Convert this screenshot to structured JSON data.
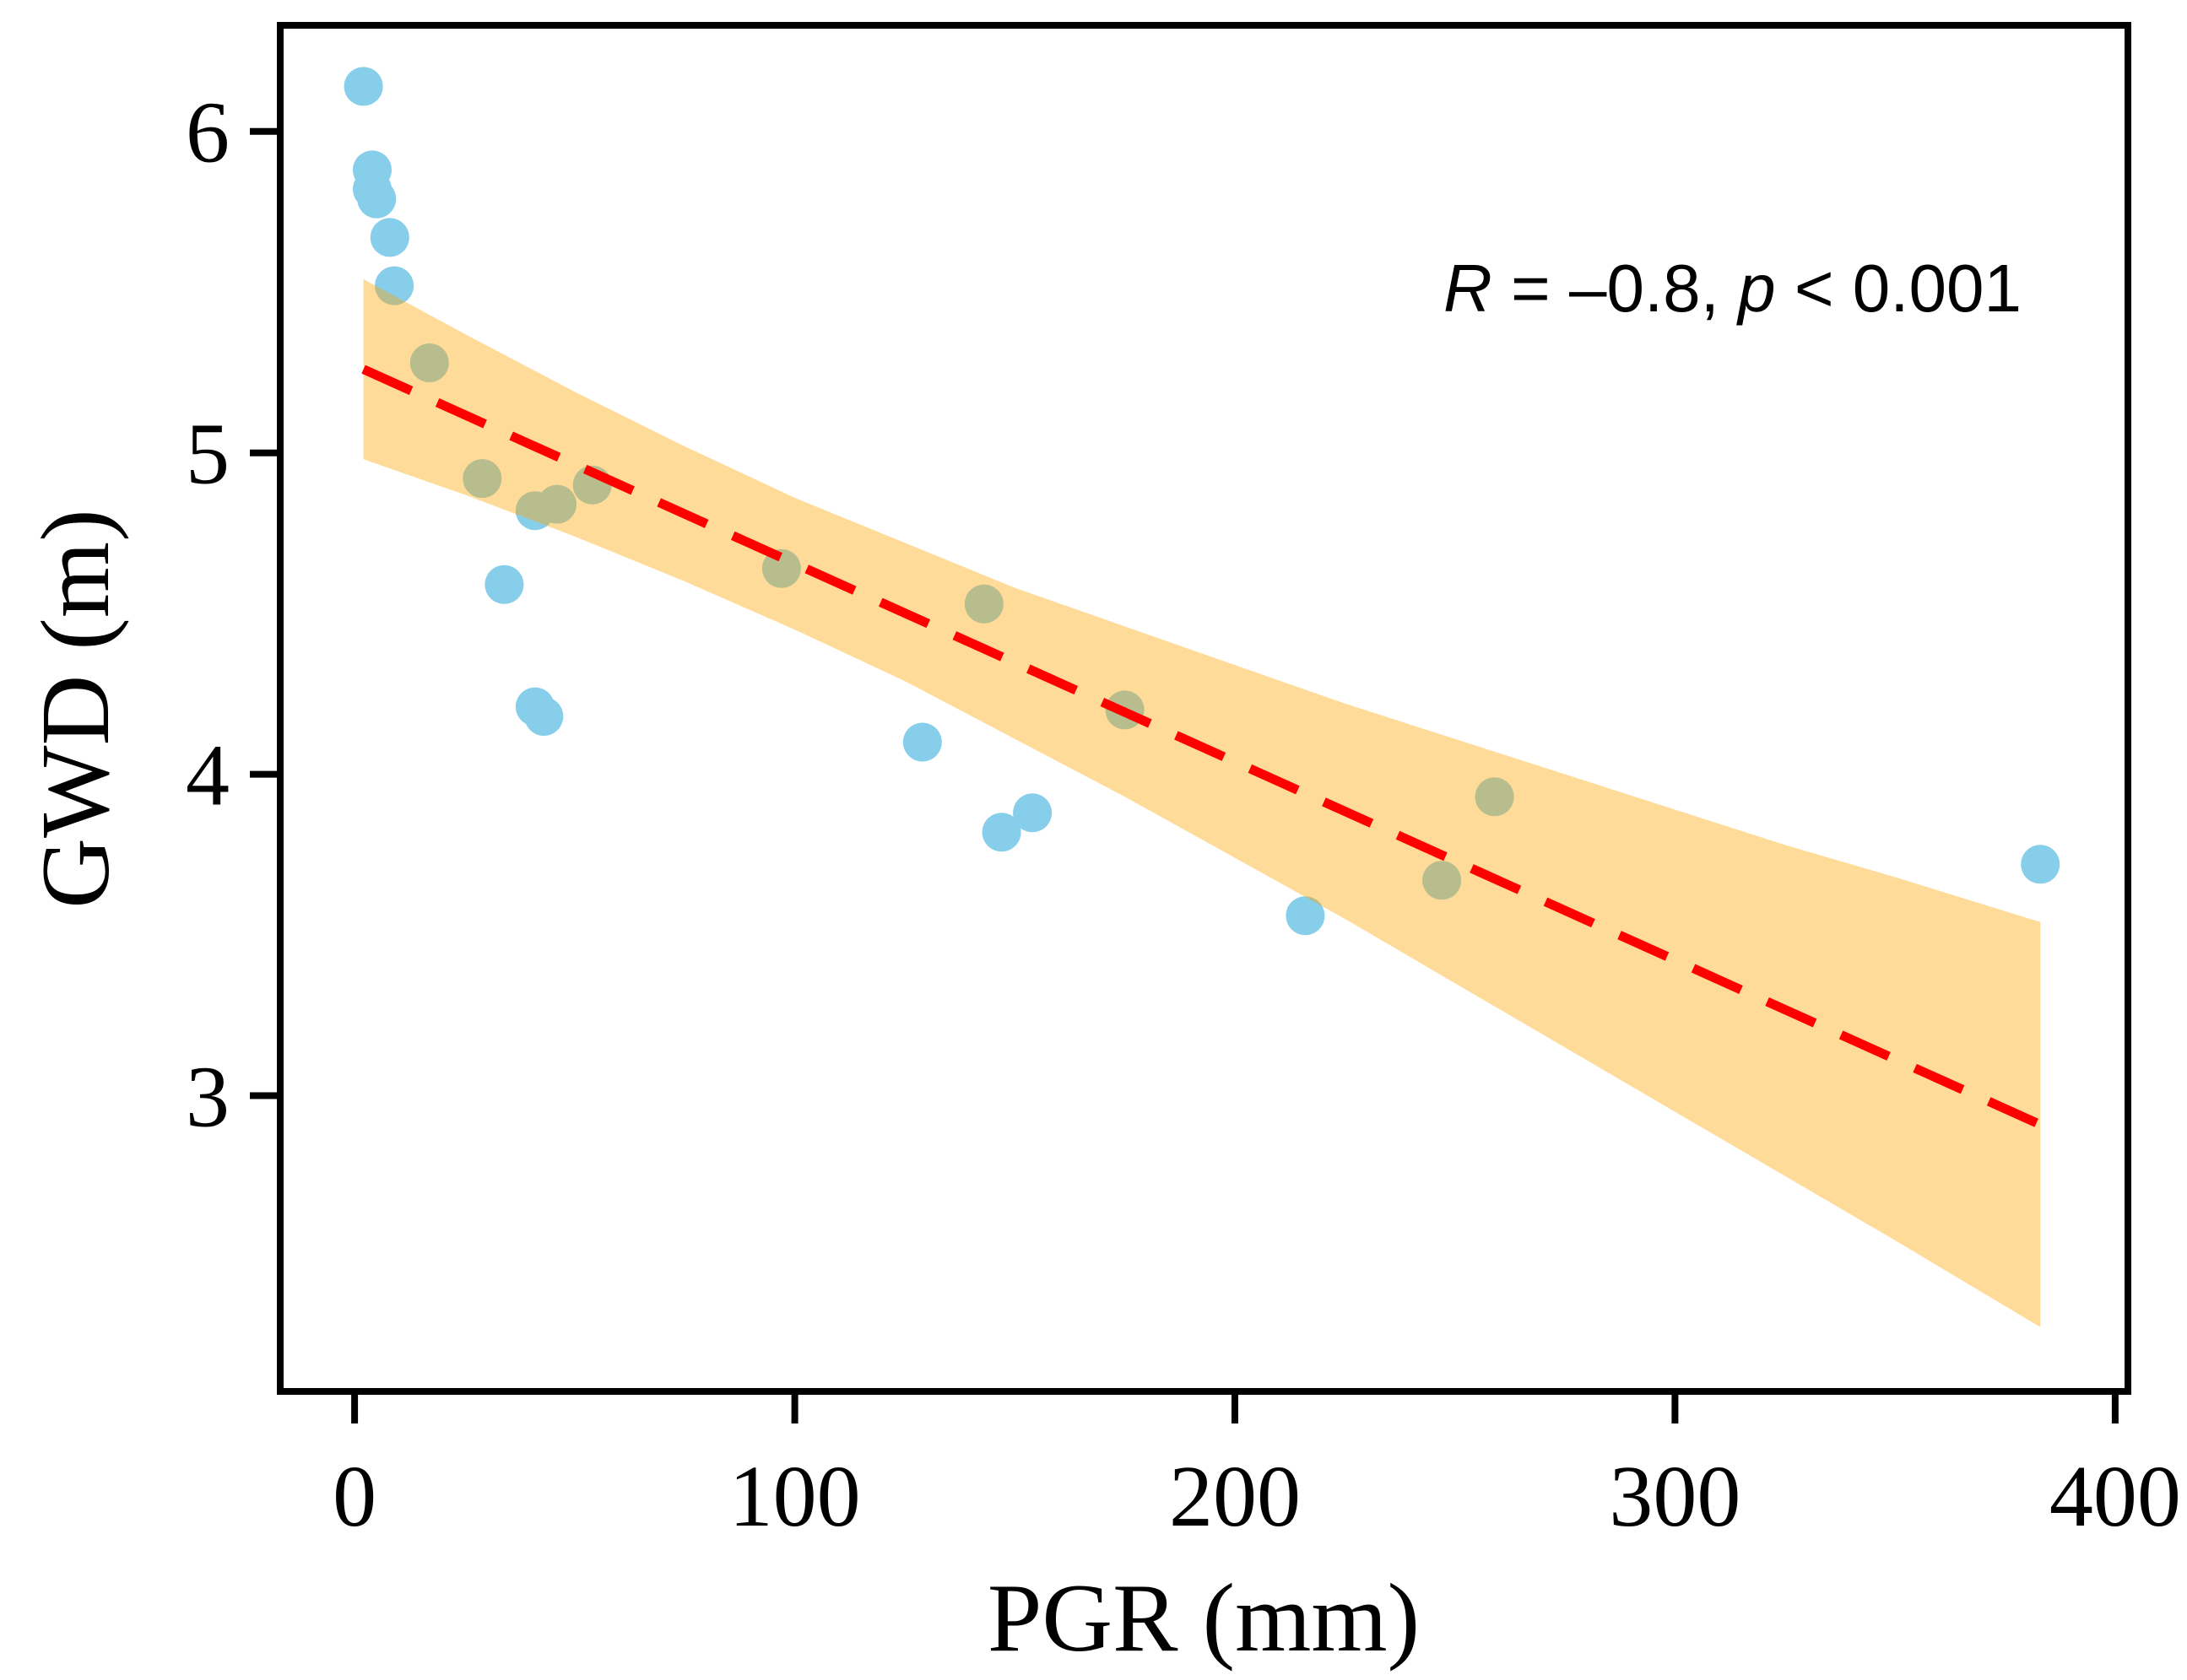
{
  "chart_data": {
    "type": "scatter",
    "xlabel": "PGR (mm)",
    "ylabel": "GWD (m)",
    "xlim": [
      -16.9,
      402.9
    ],
    "ylim": [
      2.08,
      6.33
    ],
    "x_ticks": [
      0,
      100,
      200,
      300,
      400
    ],
    "y_ticks": [
      3,
      4,
      5,
      6
    ],
    "grid": false,
    "points": {
      "x": [
        2,
        4,
        4,
        5,
        8,
        9,
        17,
        29,
        34,
        41,
        41,
        43,
        46,
        54,
        97,
        129,
        143,
        147,
        154,
        175,
        216,
        247,
        259,
        383
      ],
      "y": [
        6.14,
        5.88,
        5.82,
        5.79,
        5.67,
        5.52,
        5.28,
        4.92,
        4.59,
        4.82,
        4.21,
        4.18,
        4.84,
        4.9,
        4.64,
        4.1,
        4.53,
        3.82,
        3.88,
        4.2,
        3.56,
        3.67,
        3.93,
        3.72
      ]
    },
    "fit_line": {
      "x": [
        2,
        383
      ],
      "y": [
        5.26,
        2.91
      ]
    },
    "ci_band": {
      "x": [
        2,
        25,
        50,
        75,
        100,
        125,
        150,
        175,
        200,
        225,
        250,
        275,
        300,
        325,
        350,
        383
      ],
      "upper": [
        5.54,
        5.37,
        5.19,
        5.02,
        4.86,
        4.72,
        4.58,
        4.46,
        4.34,
        4.22,
        4.11,
        4.0,
        3.89,
        3.78,
        3.68,
        3.54
      ],
      "lower": [
        4.98,
        4.87,
        4.74,
        4.6,
        4.45,
        4.29,
        4.11,
        3.93,
        3.74,
        3.55,
        3.35,
        3.15,
        2.95,
        2.75,
        2.55,
        2.28
      ]
    },
    "annotation": {
      "r_symbol": "R",
      "r_text": " = –0.8, ",
      "p_symbol": "p",
      "p_text": " < 0.001"
    },
    "colors": {
      "points": "#87CEEB",
      "band": "#FFA500",
      "fit_line": "#FF0000",
      "axes": "#000000"
    }
  }
}
